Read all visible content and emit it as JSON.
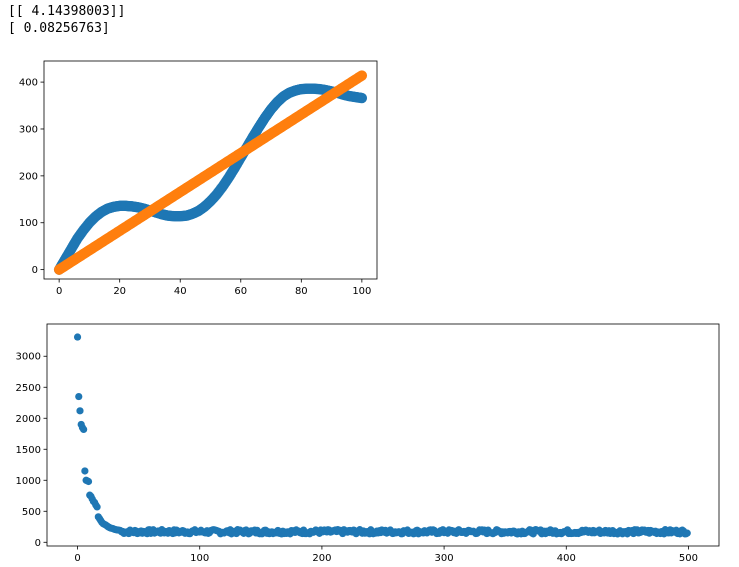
{
  "output_lines": [
    "[[ 4.14398003]]",
    "[ 0.08256763]"
  ],
  "chart_data": [
    {
      "type": "scatter",
      "xlim": [
        -5,
        105
      ],
      "ylim": [
        -20,
        445
      ],
      "x_ticks": [
        0,
        20,
        40,
        60,
        80,
        100
      ],
      "y_ticks": [
        0,
        100,
        200,
        300,
        400
      ],
      "x_tick_labels": [
        "0",
        "20",
        "40",
        "60",
        "80",
        "100"
      ],
      "y_tick_labels": [
        "0",
        "100",
        "200",
        "300",
        "400"
      ],
      "grid": false,
      "series": [
        {
          "color": "#1f77b4",
          "points": [
            [
              0,
              0
            ],
            [
              2,
              22
            ],
            [
              4,
              44
            ],
            [
              6,
              66
            ],
            [
              8,
              84
            ],
            [
              10,
              100
            ],
            [
              12,
              113
            ],
            [
              14,
              123
            ],
            [
              16,
              130
            ],
            [
              18,
              134
            ],
            [
              20,
              136
            ],
            [
              22,
              136
            ],
            [
              24,
              135
            ],
            [
              26,
              133
            ],
            [
              28,
              130
            ],
            [
              30,
              126
            ],
            [
              32,
              122
            ],
            [
              34,
              118
            ],
            [
              36,
              115
            ],
            [
              38,
              114
            ],
            [
              40,
              114
            ],
            [
              42,
              115
            ],
            [
              44,
              119
            ],
            [
              46,
              125
            ],
            [
              48,
              134
            ],
            [
              50,
              146
            ],
            [
              52,
              160
            ],
            [
              54,
              177
            ],
            [
              56,
              196
            ],
            [
              58,
              217
            ],
            [
              60,
              239
            ],
            [
              62,
              261
            ],
            [
              64,
              283
            ],
            [
              66,
              304
            ],
            [
              68,
              324
            ],
            [
              70,
              342
            ],
            [
              72,
              357
            ],
            [
              74,
              369
            ],
            [
              76,
              377
            ],
            [
              78,
              382
            ],
            [
              80,
              385
            ],
            [
              82,
              386
            ],
            [
              84,
              386
            ],
            [
              86,
              385
            ],
            [
              88,
              383
            ],
            [
              90,
              380
            ],
            [
              92,
              377
            ],
            [
              94,
              373
            ],
            [
              96,
              370
            ],
            [
              98,
              368
            ],
            [
              100,
              366
            ]
          ]
        },
        {
          "color": "#ff7f0e",
          "points": [
            [
              0,
              0
            ],
            [
              100,
              414
            ]
          ]
        }
      ]
    },
    {
      "type": "scatter",
      "xlim": [
        -25,
        525
      ],
      "ylim": [
        -60,
        3520
      ],
      "x_ticks": [
        0,
        100,
        200,
        300,
        400,
        500
      ],
      "y_ticks": [
        0,
        500,
        1000,
        1500,
        2000,
        2500,
        3000
      ],
      "x_tick_labels": [
        "0",
        "100",
        "200",
        "300",
        "400",
        "500"
      ],
      "y_tick_labels": [
        "0",
        "500",
        "1000",
        "1500",
        "2000",
        "2500",
        "3000"
      ],
      "grid": false,
      "series": [
        {
          "color": "#1f77b4",
          "points_head": [
            [
              0,
              3310
            ],
            [
              1,
              2350
            ],
            [
              2,
              2120
            ],
            [
              3,
              1900
            ],
            [
              4,
              1850
            ],
            [
              5,
              1820
            ],
            [
              6,
              1150
            ],
            [
              7,
              1000
            ],
            [
              8,
              990
            ],
            [
              9,
              980
            ],
            [
              10,
              760
            ],
            [
              11,
              740
            ],
            [
              12,
              700
            ],
            [
              13,
              660
            ],
            [
              14,
              640
            ],
            [
              15,
              600
            ],
            [
              16,
              570
            ],
            [
              17,
              410
            ],
            [
              18,
              380
            ],
            [
              19,
              350
            ],
            [
              20,
              320
            ],
            [
              21,
              300
            ],
            [
              22,
              290
            ],
            [
              23,
              280
            ],
            [
              24,
              265
            ],
            [
              25,
              250
            ],
            [
              26,
              240
            ],
            [
              27,
              230
            ],
            [
              28,
              225
            ],
            [
              29,
              220
            ],
            [
              30,
              210
            ],
            [
              31,
              205
            ],
            [
              32,
              200
            ],
            [
              33,
              198
            ],
            [
              34,
              195
            ],
            [
              35,
              190
            ]
          ],
          "tail_level": 170,
          "tail_from": 36,
          "tail_to": 499
        }
      ]
    }
  ]
}
